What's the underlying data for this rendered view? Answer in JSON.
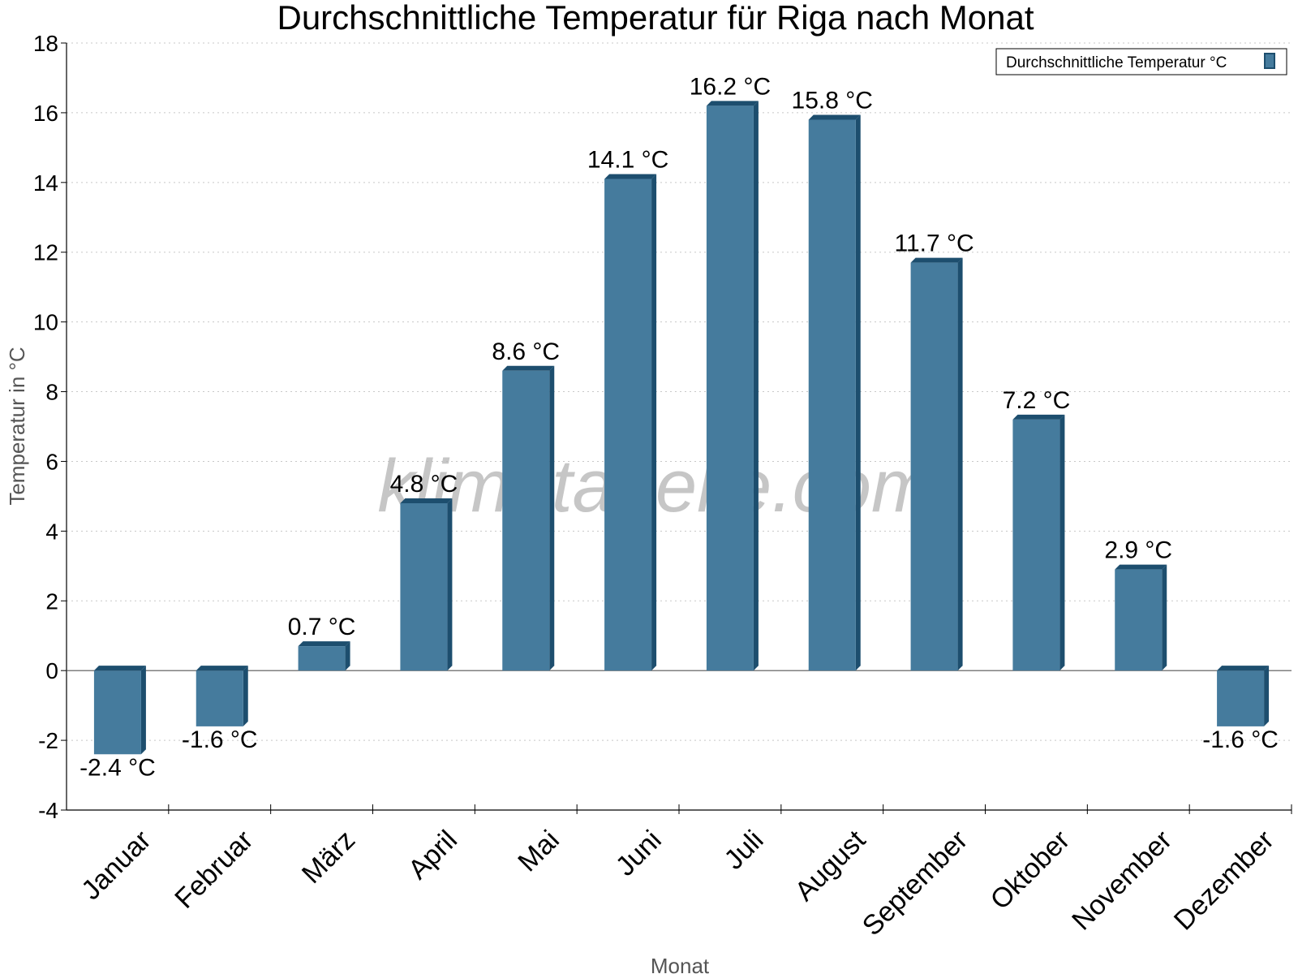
{
  "chart_data": {
    "type": "bar",
    "title": "Durchschnittliche Temperatur für Riga nach Monat",
    "xlabel": "Monat",
    "ylabel": "Temperatur in °C",
    "categories": [
      "Januar",
      "Februar",
      "März",
      "April",
      "Mai",
      "Juni",
      "Juli",
      "August",
      "September",
      "Oktober",
      "November",
      "Dezember"
    ],
    "series": [
      {
        "name": "Durchschnittliche Temperatur °C",
        "values": [
          -2.4,
          -1.6,
          0.7,
          4.8,
          8.6,
          14.1,
          16.2,
          15.8,
          11.7,
          7.2,
          2.9,
          -1.6
        ],
        "data_labels": [
          "-2.4 °C",
          "-1.6 °C",
          "0.7 °C",
          "4.8 °C",
          "8.6 °C",
          "14.1 °C",
          "16.2 °C",
          "15.8 °C",
          "11.7 °C",
          "7.2 °C",
          "2.9 °C",
          "-1.6 °C"
        ],
        "color": "#457b9d",
        "edge_color": "#1d4e6e"
      }
    ],
    "ylim": [
      -4,
      18
    ],
    "yticks": [
      "-4",
      "-2",
      "0",
      "2",
      "4",
      "6",
      "8",
      "10",
      "12",
      "14",
      "16",
      "18"
    ],
    "grid": true,
    "legend_position": "top-right",
    "watermark": "klimatabelle.com"
  }
}
